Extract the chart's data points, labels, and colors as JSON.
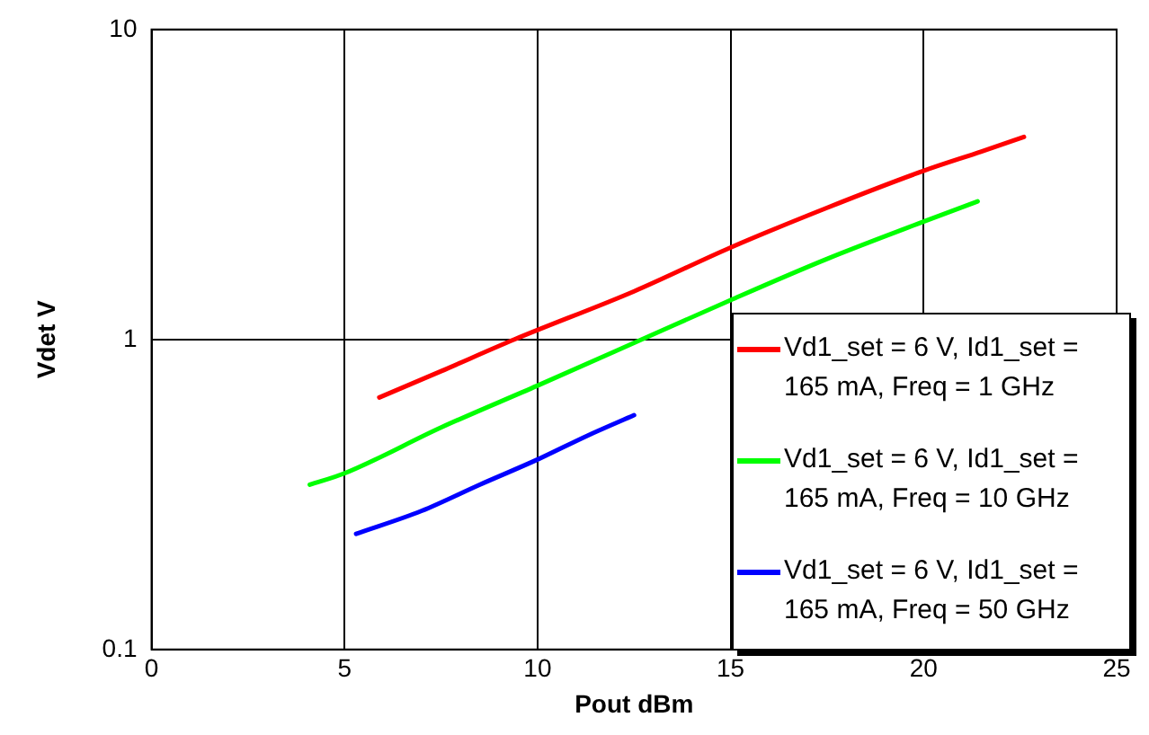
{
  "chart_data": {
    "type": "line",
    "xlabel": "Pout dBm",
    "ylabel": "Vdet V",
    "log": "y",
    "grid": true,
    "legend": "bottom right",
    "marker": "none",
    "line_style": "solid",
    "xlim": [
      0,
      25
    ],
    "xticks": [
      0,
      5,
      10,
      15,
      20,
      25
    ],
    "ylim": [
      0.1,
      10
    ],
    "yticks": [
      0.1,
      1,
      10
    ],
    "series": [
      {
        "name": "Vd1_set = 6 V, Id1_set = 165 mA, Freq = 1 GHz",
        "color": "#ff0000",
        "x": [
          5.9,
          7.5,
          9.4,
          12.5,
          15,
          17.5,
          20,
          21.5,
          22.6
        ],
        "values": [
          0.65,
          0.79,
          1,
          1.43,
          1.98,
          2.66,
          3.5,
          4.04,
          4.5
        ]
      },
      {
        "name": "Vd1_set = 6 V, Id1_set = 165 mA, Freq = 10 GHz",
        "color": "#00ff00",
        "x": [
          4.1,
          5,
          7.5,
          10,
          12.7,
          15,
          17.5,
          20,
          21.4
        ],
        "values": [
          0.34,
          0.37,
          0.52,
          0.71,
          1,
          1.34,
          1.82,
          2.4,
          2.79
        ]
      },
      {
        "name": "Vd1_set = 6 V, Id1_set = 165 mA, Freq = 50 GHz",
        "color": "#0000ff",
        "x": [
          5.3,
          7,
          8.5,
          10,
          11.3,
          12.5
        ],
        "values": [
          0.236,
          0.28,
          0.34,
          0.41,
          0.49,
          0.57
        ]
      }
    ]
  }
}
